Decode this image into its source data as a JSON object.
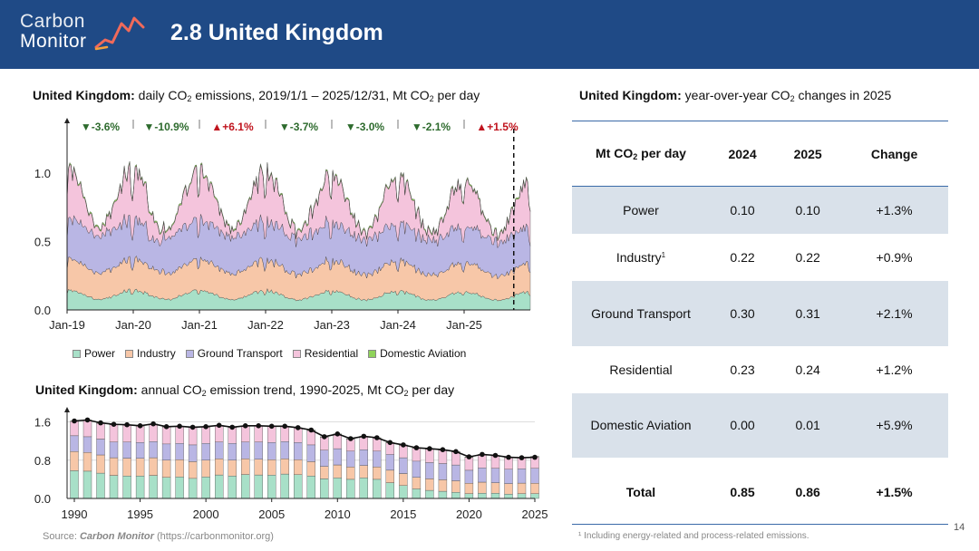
{
  "header": {
    "logo_line1": "Carbon",
    "logo_line2": "Monitor",
    "title": "2.8 United Kingdom",
    "bg_color": "#1f4a86"
  },
  "daily_panel": {
    "title_bold": "United Kingdom:",
    "title_pre": "daily CO",
    "title_sub": "2",
    "title_mid": "emissions, 2019/1/1 – 2025/12/31, Mt CO",
    "title_sub2": "2",
    "title_post": "per day"
  },
  "annual_panel": {
    "title_bold": "United Kingdom:",
    "title_pre": "annual CO",
    "title_sub": "2",
    "title_mid": "emission trend, 1990-2025, Mt CO",
    "title_sub2": "2",
    "title_post": "per day"
  },
  "table_panel": {
    "title_bold": "United Kingdom:",
    "title_pre": "year-over-year CO",
    "title_sub": "2",
    "title_post": "changes in 2025"
  },
  "legend": [
    {
      "label": "Power",
      "color": "#a8e0c8"
    },
    {
      "label": "Industry",
      "color": "#f7c7a8"
    },
    {
      "label": "Ground Transport",
      "color": "#b9b6e4"
    },
    {
      "label": "Residential",
      "color": "#f4c4dc"
    },
    {
      "label": "Domestic Aviation",
      "color": "#8fd35a"
    }
  ],
  "chart_data": [
    {
      "type": "area",
      "title": "United Kingdom: daily CO2 emissions, 2019/1/1 – 2025/12/31, Mt CO2 per day",
      "xlabel": "",
      "ylabel": "Mt CO2 per day",
      "x_ticks": [
        "Jan-19",
        "Jan-20",
        "Jan-21",
        "Jan-22",
        "Jan-23",
        "Jan-24",
        "Jan-25"
      ],
      "y_ticks": [
        "0.0",
        "0.5",
        "1.0"
      ],
      "ylim": [
        0,
        1.35
      ],
      "stacked": true,
      "series": [
        {
          "name": "Power",
          "summer_avg": 0.08,
          "winter_avg": 0.15
        },
        {
          "name": "Industry",
          "summer_avg": 0.2,
          "winter_avg": 0.24
        },
        {
          "name": "Ground Transport",
          "summer_avg": 0.28,
          "winter_avg": 0.3
        },
        {
          "name": "Residential",
          "summer_avg": 0.06,
          "winter_avg": 0.38
        },
        {
          "name": "Domestic Aviation",
          "summer_avg": 0.01,
          "winter_avg": 0.01
        }
      ],
      "annotations": [
        {
          "year": "2019",
          "label": "▼-3.6%",
          "direction": "down"
        },
        {
          "year": "2020",
          "label": "▼-10.9%",
          "direction": "down"
        },
        {
          "year": "2021",
          "label": "▲+6.1%",
          "direction": "up"
        },
        {
          "year": "2022",
          "label": "▼-3.7%",
          "direction": "down"
        },
        {
          "year": "2023",
          "label": "▼-3.0%",
          "direction": "down"
        },
        {
          "year": "2024",
          "label": "▼-2.1%",
          "direction": "down"
        },
        {
          "year": "2025",
          "label": "▲+1.5%",
          "direction": "up"
        }
      ]
    },
    {
      "type": "bar",
      "stacked": true,
      "title": "United Kingdom: annual CO2 emission trend, 1990-2025, Mt CO2 per day",
      "x": [
        1990,
        1991,
        1992,
        1993,
        1994,
        1995,
        1996,
        1997,
        1998,
        1999,
        2000,
        2001,
        2002,
        2003,
        2004,
        2005,
        2006,
        2007,
        2008,
        2009,
        2010,
        2011,
        2012,
        2013,
        2014,
        2015,
        2016,
        2017,
        2018,
        2019,
        2020,
        2021,
        2022,
        2023,
        2024,
        2025
      ],
      "x_ticks": [
        "1990",
        "1995",
        "2000",
        "2005",
        "2010",
        "2015",
        "2020",
        "2025"
      ],
      "y_ticks": [
        "0.0",
        "0.8",
        "1.6"
      ],
      "ylim": [
        0,
        1.8
      ],
      "total": [
        1.62,
        1.64,
        1.58,
        1.55,
        1.54,
        1.52,
        1.56,
        1.5,
        1.51,
        1.49,
        1.5,
        1.53,
        1.49,
        1.52,
        1.52,
        1.51,
        1.51,
        1.48,
        1.43,
        1.29,
        1.35,
        1.25,
        1.3,
        1.27,
        1.17,
        1.12,
        1.06,
        1.04,
        1.02,
        0.98,
        0.87,
        0.92,
        0.9,
        0.86,
        0.85,
        0.86
      ],
      "series": [
        {
          "name": "Power",
          "values": [
            0.58,
            0.57,
            0.53,
            0.48,
            0.47,
            0.47,
            0.48,
            0.44,
            0.45,
            0.42,
            0.45,
            0.49,
            0.47,
            0.5,
            0.49,
            0.49,
            0.51,
            0.5,
            0.47,
            0.41,
            0.43,
            0.4,
            0.43,
            0.4,
            0.33,
            0.27,
            0.2,
            0.17,
            0.15,
            0.13,
            0.1,
            0.11,
            0.11,
            0.09,
            0.1,
            0.1
          ]
        },
        {
          "name": "Industry",
          "values": [
            0.4,
            0.39,
            0.38,
            0.37,
            0.37,
            0.37,
            0.37,
            0.36,
            0.36,
            0.35,
            0.35,
            0.34,
            0.33,
            0.33,
            0.33,
            0.32,
            0.32,
            0.31,
            0.3,
            0.26,
            0.27,
            0.26,
            0.26,
            0.26,
            0.26,
            0.25,
            0.24,
            0.24,
            0.24,
            0.24,
            0.22,
            0.23,
            0.22,
            0.22,
            0.22,
            0.22
          ]
        },
        {
          "name": "Ground Transport",
          "values": [
            0.33,
            0.33,
            0.33,
            0.33,
            0.34,
            0.33,
            0.34,
            0.34,
            0.34,
            0.35,
            0.35,
            0.35,
            0.35,
            0.35,
            0.36,
            0.36,
            0.36,
            0.36,
            0.35,
            0.34,
            0.34,
            0.33,
            0.33,
            0.33,
            0.33,
            0.33,
            0.34,
            0.34,
            0.34,
            0.33,
            0.27,
            0.3,
            0.3,
            0.3,
            0.3,
            0.31
          ]
        },
        {
          "name": "Residential",
          "values": [
            0.3,
            0.34,
            0.33,
            0.36,
            0.35,
            0.34,
            0.36,
            0.35,
            0.35,
            0.36,
            0.34,
            0.34,
            0.33,
            0.33,
            0.33,
            0.33,
            0.31,
            0.3,
            0.3,
            0.27,
            0.3,
            0.25,
            0.27,
            0.27,
            0.24,
            0.26,
            0.27,
            0.28,
            0.28,
            0.27,
            0.27,
            0.27,
            0.26,
            0.24,
            0.23,
            0.24
          ]
        },
        {
          "name": "Domestic Aviation",
          "values": [
            0.01,
            0.01,
            0.01,
            0.01,
            0.01,
            0.01,
            0.01,
            0.01,
            0.01,
            0.01,
            0.01,
            0.01,
            0.01,
            0.01,
            0.01,
            0.01,
            0.01,
            0.01,
            0.01,
            0.01,
            0.01,
            0.01,
            0.01,
            0.01,
            0.01,
            0.01,
            0.01,
            0.01,
            0.01,
            0.01,
            0.01,
            0.01,
            0.01,
            0.01,
            0.0,
            0.01
          ]
        }
      ]
    },
    {
      "type": "table",
      "headers": [
        "Mt CO2 per day",
        "2024",
        "2025",
        "Change"
      ],
      "rows": [
        [
          "Power",
          "0.10",
          "0.10",
          "+1.3%"
        ],
        [
          "Industry",
          "0.22",
          "0.22",
          "+0.9%"
        ],
        [
          "Ground Transport",
          "0.30",
          "0.31",
          "+2.1%"
        ],
        [
          "Residential",
          "0.23",
          "0.24",
          "+1.2%"
        ],
        [
          "Domestic Aviation",
          "0.00",
          "0.01",
          "+5.9%"
        ],
        [
          "Total",
          "0.85",
          "0.86",
          "+1.5%"
        ]
      ]
    }
  ],
  "table": {
    "header_label_pre": "Mt CO",
    "header_label_sub": "2",
    "header_label_post": "per day",
    "col_2024": "2024",
    "col_2025": "2025",
    "col_change": "Change",
    "rows": [
      {
        "name": "Power",
        "v2024": "0.10",
        "v2025": "0.10",
        "change": "+1.3%"
      },
      {
        "name": "Industry",
        "sup": "1",
        "v2024": "0.22",
        "v2025": "0.22",
        "change": "+0.9%"
      },
      {
        "name": "Ground Transport",
        "v2024": "0.30",
        "v2025": "0.31",
        "change": "+2.1%"
      },
      {
        "name": "Residential",
        "v2024": "0.23",
        "v2025": "0.24",
        "change": "+1.2%"
      },
      {
        "name": "Domestic Aviation",
        "v2024": "0.00",
        "v2025": "0.01",
        "change": "+5.9%"
      },
      {
        "name": "Total",
        "v2024": "0.85",
        "v2025": "0.86",
        "change": "+1.5%"
      }
    ]
  },
  "footnote": "¹ Including energy-related and process-related emissions.",
  "source_pre": "Source:",
  "source_name": "Carbon Monitor",
  "source_url": "(https://carbonmonitor.org)",
  "page_number": "14",
  "colors": {
    "down": "#2e6b2e",
    "up": "#c0141e",
    "table_shade": "#d9e1ea",
    "rule": "#3a6aa8"
  }
}
